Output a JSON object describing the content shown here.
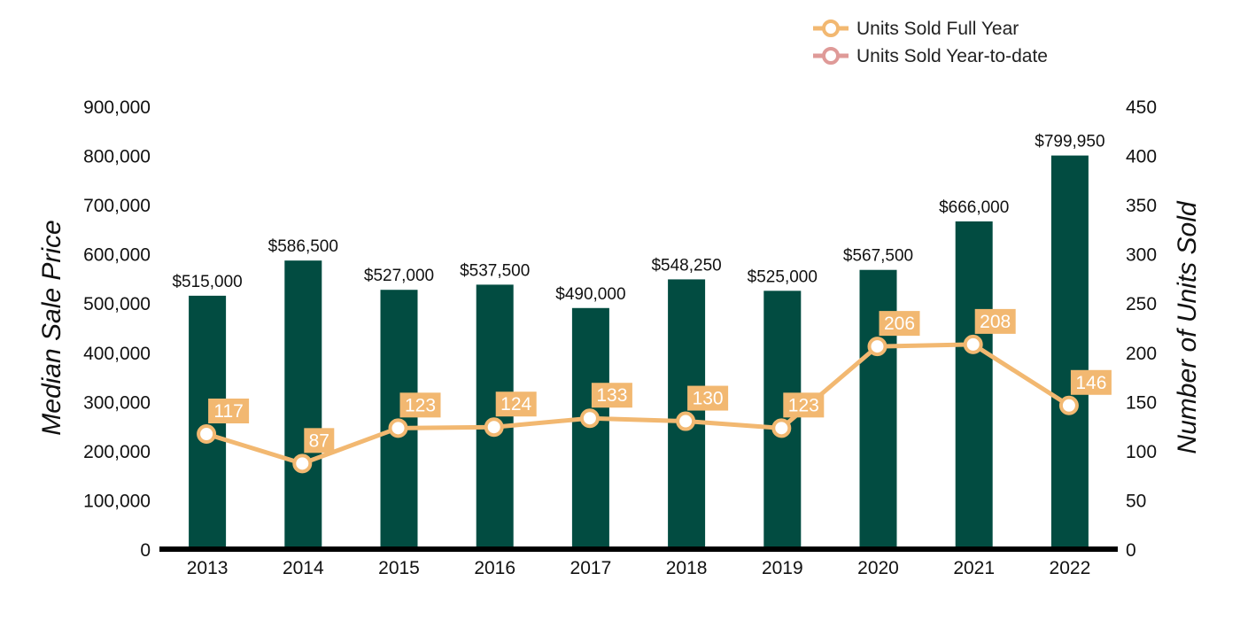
{
  "chart_data": {
    "type": "bar",
    "categories": [
      "2013",
      "2014",
      "2015",
      "2016",
      "2017",
      "2018",
      "2019",
      "2020",
      "2021",
      "2022"
    ],
    "series": [
      {
        "name": "Median Sale Price",
        "type": "bar",
        "axis": "left",
        "values": [
          515000,
          586500,
          527000,
          537500,
          490000,
          548250,
          525000,
          567500,
          666000,
          799950
        ],
        "labels": [
          "$515,000",
          "$586,500",
          "$527,000",
          "$537,500",
          "$490,000",
          "$548,250",
          "$525,000",
          "$567,500",
          "$666,000",
          "$799,950"
        ],
        "color": "#024c41"
      },
      {
        "name": "Units Sold Full Year",
        "type": "line",
        "axis": "right",
        "values": [
          117,
          87,
          123,
          124,
          133,
          130,
          123,
          206,
          208,
          146
        ],
        "labels": [
          "117",
          "87",
          "123",
          "124",
          "133",
          "130",
          "123",
          "206",
          "208",
          "146"
        ],
        "color": "#f2b871"
      }
    ],
    "legend": [
      {
        "label": "Units Sold Full Year",
        "color": "#f2b871"
      },
      {
        "label": "Units Sold Year-to-date",
        "color": "#df9a98"
      }
    ],
    "legend_position": "top-right",
    "y_left": {
      "label": "Median Sale Price",
      "lim": [
        0,
        900000
      ],
      "ticks": [
        0,
        100000,
        200000,
        300000,
        400000,
        500000,
        600000,
        700000,
        800000,
        900000
      ],
      "tick_labels": [
        "0",
        "100,000",
        "200,000",
        "300,000",
        "400,000",
        "500,000",
        "600,000",
        "700,000",
        "800,000",
        "900,000"
      ]
    },
    "y_right": {
      "label": "Number of Units Sold",
      "lim": [
        0,
        450
      ],
      "ticks": [
        0,
        50,
        100,
        150,
        200,
        250,
        300,
        350,
        400,
        450
      ],
      "tick_labels": [
        "0",
        "50",
        "100",
        "150",
        "200",
        "250",
        "300",
        "350",
        "400",
        "450"
      ]
    },
    "grid": false
  }
}
